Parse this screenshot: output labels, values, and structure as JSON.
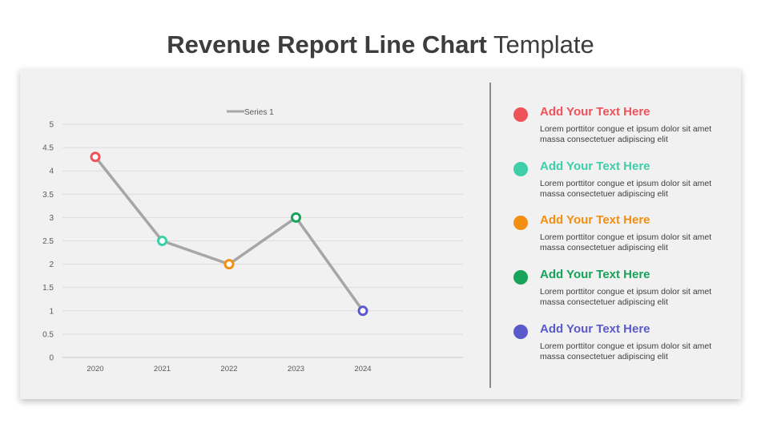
{
  "title": {
    "bold": "Revenue Report Line Chart",
    "light": "Template"
  },
  "chart_data": {
    "type": "line",
    "categories": [
      "2020",
      "2021",
      "2022",
      "2023",
      "2024"
    ],
    "series": [
      {
        "name": "Series 1",
        "values": [
          4.3,
          2.5,
          2.0,
          3.0,
          1.0
        ]
      }
    ],
    "yticks": [
      "0",
      "0.5",
      "1",
      "1.5",
      "2",
      "2.5",
      "3",
      "3.5",
      "4",
      "4.5",
      "5"
    ],
    "ylim": [
      0,
      5
    ],
    "legend": "top-center",
    "grid": true,
    "line_color": "#a6a6a6",
    "marker_colors": [
      "#f0525a",
      "#3ecfa8",
      "#f28f12",
      "#17a35a",
      "#5a5acb"
    ]
  },
  "items": [
    {
      "heading": "Add Your Text Here",
      "body": "Lorem porttitor  congue et ipsum dolor sit amet massa consectetuer adipiscing elit",
      "color": "#f0525a"
    },
    {
      "heading": "Add Your Text Here",
      "body": "Lorem porttitor  congue et ipsum dolor sit amet massa consectetuer adipiscing elit",
      "color": "#3ecfa8"
    },
    {
      "heading": "Add Your Text Here",
      "body": "Lorem porttitor  congue et ipsum dolor sit amet massa consectetuer adipiscing elit",
      "color": "#f28f12"
    },
    {
      "heading": "Add Your Text Here",
      "body": "Lorem porttitor  congue et ipsum dolor sit amet massa consectetuer adipiscing elit",
      "color": "#17a35a"
    },
    {
      "heading": "Add Your Text Here",
      "body": "Lorem porttitor  congue et ipsum dolor sit amet massa consectetuer adipiscing elit",
      "color": "#5a5acb"
    }
  ]
}
